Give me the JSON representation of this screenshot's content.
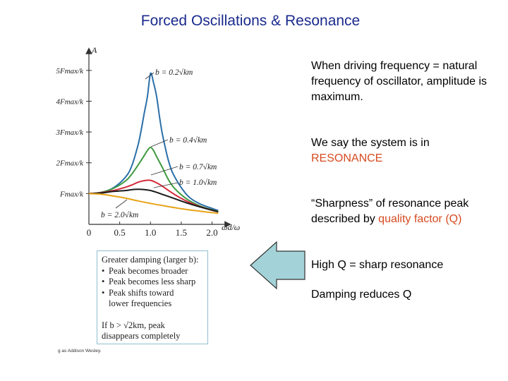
{
  "slide": {
    "title": "Forced Oscillations & Resonance",
    "paragraphs": [
      {
        "parts": [
          {
            "text": "When driving frequency = natural frequency of oscillator, amplitude is maximum.",
            "color": "#000000"
          }
        ]
      },
      {
        "parts": [
          {
            "text": "We say the system is in ",
            "color": "#000000"
          },
          {
            "text": "RESONANCE",
            "color": "#d64a1f"
          }
        ]
      },
      {
        "parts": [
          {
            "text": "“Sharpness” of resonance peak described by ",
            "color": "#000000"
          },
          {
            "text": "quality factor (Q)",
            "color": "#d64a1f"
          }
        ]
      },
      {
        "parts": [
          {
            "text": "High Q = sharp resonance",
            "color": "#000000"
          }
        ]
      },
      {
        "parts": [
          {
            "text": "Damping reduces Q",
            "color": "#000000"
          }
        ]
      }
    ],
    "info_box": {
      "heading": "Greater damping (larger b):",
      "bullets": [
        "Peak becomes broader",
        "Peak becomes less sharp",
        "Peak shifts toward"
      ],
      "bullet_continuation": "lower frequencies",
      "footer_line1": "If b > √2km, peak",
      "footer_line2": "disappears completely"
    },
    "credit": "g as Addison Wesley.",
    "arrow_color": "#a3d3d8"
  },
  "chart_data": {
    "type": "line",
    "xlabel": "ωd/ω",
    "ylabel": "A",
    "xlim": [
      0,
      2.2
    ],
    "ylim": [
      0,
      5.5
    ],
    "x_ticks": [
      "0",
      "0.5",
      "1.0",
      "1.5",
      "2.0"
    ],
    "x_tick_values": [
      0,
      0.5,
      1.0,
      1.5,
      2.0
    ],
    "y_ticks": [
      "Fmax/k",
      "2Fmax/k",
      "3Fmax/k",
      "4Fmax/k",
      "5Fmax/k"
    ],
    "y_tick_values": [
      1,
      2,
      3,
      4,
      5
    ],
    "grid": false,
    "series": [
      {
        "name": "b = 0.2√km",
        "color": "#2a6fa8",
        "damping_ratio": 0.2,
        "x": [
          0,
          0.2,
          0.4,
          0.6,
          0.7,
          0.8,
          0.85,
          0.9,
          0.95,
          1.0,
          1.05,
          1.1,
          1.15,
          1.2,
          1.3,
          1.4,
          1.6,
          1.8,
          2.0,
          2.1
        ],
        "y": [
          1.0,
          1.04,
          1.19,
          1.55,
          1.92,
          2.59,
          3.07,
          3.62,
          4.15,
          4.9,
          4.6,
          4.15,
          3.45,
          2.87,
          2.01,
          1.52,
          0.94,
          0.67,
          0.52,
          0.45
        ]
      },
      {
        "name": "b = 0.4√km",
        "color": "#3f9a3f",
        "damping_ratio": 0.4,
        "x": [
          0,
          0.2,
          0.4,
          0.6,
          0.7,
          0.8,
          0.9,
          0.95,
          1.0,
          1.05,
          1.1,
          1.2,
          1.3,
          1.4,
          1.6,
          1.8,
          2.0,
          2.1
        ],
        "y": [
          1.0,
          1.04,
          1.17,
          1.42,
          1.64,
          1.93,
          2.24,
          2.4,
          2.5,
          2.4,
          2.2,
          1.82,
          1.42,
          1.15,
          0.81,
          0.6,
          0.47,
          0.42
        ]
      },
      {
        "name": "b = 0.7√km",
        "color": "#d42a3a",
        "damping_ratio": 0.7,
        "x": [
          0,
          0.2,
          0.4,
          0.6,
          0.7,
          0.8,
          0.9,
          1.0,
          1.1,
          1.2,
          1.3,
          1.4,
          1.6,
          1.8,
          2.0,
          2.1
        ],
        "y": [
          1.0,
          1.03,
          1.1,
          1.21,
          1.28,
          1.37,
          1.42,
          1.43,
          1.35,
          1.23,
          1.09,
          0.96,
          0.74,
          0.58,
          0.46,
          0.41
        ]
      },
      {
        "name": "b = 1.0√km",
        "color": "#1a1a1a",
        "damping_ratio": 1.0,
        "x": [
          0,
          0.2,
          0.4,
          0.6,
          0.7,
          0.8,
          0.9,
          1.0,
          1.1,
          1.2,
          1.4,
          1.6,
          1.8,
          2.0,
          2.1
        ],
        "y": [
          1.0,
          1.02,
          1.07,
          1.1,
          1.13,
          1.14,
          1.13,
          1.1,
          1.04,
          0.97,
          0.83,
          0.69,
          0.57,
          0.46,
          0.41
        ]
      },
      {
        "name": "b = 2.0√km",
        "color": "#e8a317",
        "damping_ratio": 2.0,
        "x": [
          0,
          0.2,
          0.4,
          0.6,
          0.8,
          1.0,
          1.2,
          1.4,
          1.6,
          1.8,
          2.0,
          2.1
        ],
        "y": [
          1.0,
          0.98,
          0.92,
          0.85,
          0.76,
          0.68,
          0.61,
          0.54,
          0.48,
          0.43,
          0.38,
          0.36
        ]
      }
    ],
    "annotations": [
      {
        "text": "b = 0.2√km",
        "series": 0
      },
      {
        "text": "b = 0.4√km",
        "series": 1
      },
      {
        "text": "b = 0.7√km",
        "series": 2
      },
      {
        "text": "b = 1.0√km",
        "series": 3
      },
      {
        "text": "b = 2.0√km",
        "series": 4
      }
    ]
  }
}
